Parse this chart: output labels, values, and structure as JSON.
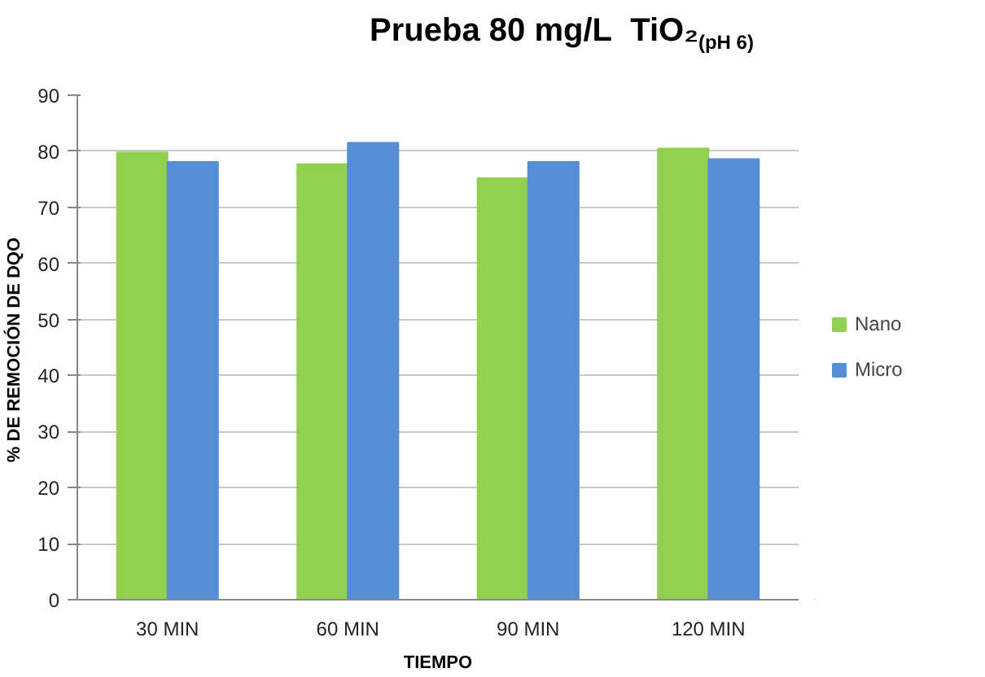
{
  "chart_data": {
    "type": "bar",
    "title": "Prueba 80 mg/L  TiO₂$_{(pH 6)}$",
    "xlabel": "TIEMPO",
    "ylabel": "% DE  REMOCIÓN DE DQO",
    "categories": [
      "30 MIN",
      "60 MIN",
      "90 MIN",
      "120 MIN"
    ],
    "series": [
      {
        "name": "Nano",
        "color": "#92d050",
        "values": [
          79.8,
          77.7,
          75.2,
          80.5
        ]
      },
      {
        "name": "Micro",
        "color": "#558ed5",
        "values": [
          78.1,
          81.5,
          78.1,
          78.6
        ]
      }
    ],
    "ylim": [
      0,
      90
    ],
    "yticks": [
      0,
      10,
      20,
      30,
      40,
      50,
      60,
      70,
      80,
      90
    ],
    "grid": "y",
    "legend": "right"
  }
}
